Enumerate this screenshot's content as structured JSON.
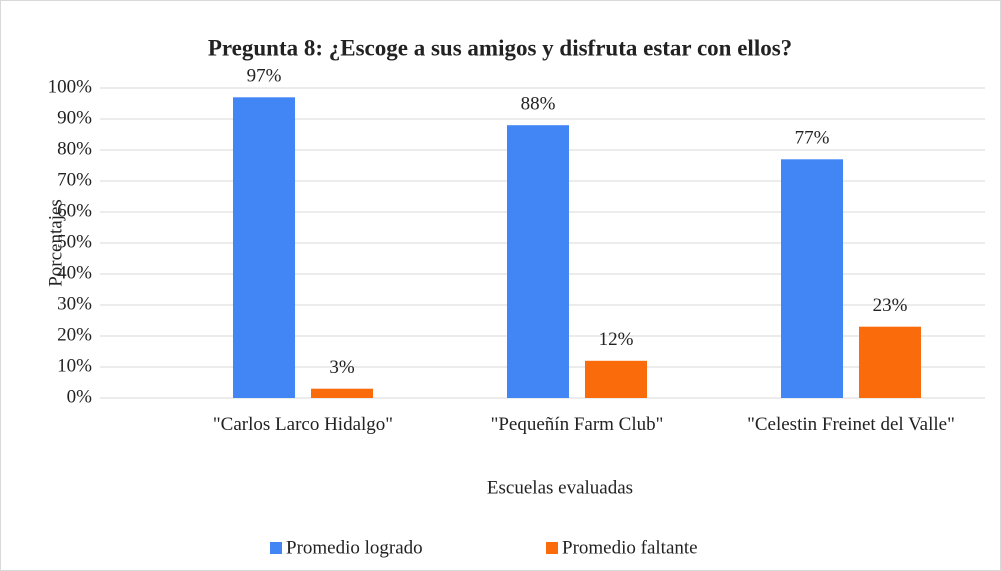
{
  "chart_data": {
    "type": "bar",
    "title": "Pregunta 8: ¿Escoge a sus amigos y disfruta estar con ellos?",
    "xlabel": "Escuelas evaluadas",
    "ylabel": "Porcentajes",
    "categories": [
      "\"Carlos Larco Hidalgo\"",
      "\"Pequeñín Farm Club\"",
      "\"Celestin Freinet del Valle\""
    ],
    "series": [
      {
        "name": "Promedio logrado",
        "color": "#4285f4",
        "values": [
          97,
          88,
          77
        ],
        "value_labels": [
          "97%",
          "88%",
          "77%"
        ]
      },
      {
        "name": "Promedio faltante",
        "color": "#fa6b0c",
        "values": [
          3,
          12,
          23
        ],
        "value_labels": [
          "3%",
          "12%",
          "23%"
        ]
      }
    ],
    "ylim": [
      0,
      100
    ],
    "yticks": [
      {
        "value": 0,
        "label": "0%"
      },
      {
        "value": 10,
        "label": "10%"
      },
      {
        "value": 20,
        "label": "20%"
      },
      {
        "value": 30,
        "label": "30%"
      },
      {
        "value": 40,
        "label": "40%"
      },
      {
        "value": 50,
        "label": "50%"
      },
      {
        "value": 60,
        "label": "60%"
      },
      {
        "value": 70,
        "label": "70%"
      },
      {
        "value": 80,
        "label": "80%"
      },
      {
        "value": 90,
        "label": "90%"
      },
      {
        "value": 100,
        "label": "100%"
      }
    ],
    "grid": true,
    "legend": "bottom"
  }
}
